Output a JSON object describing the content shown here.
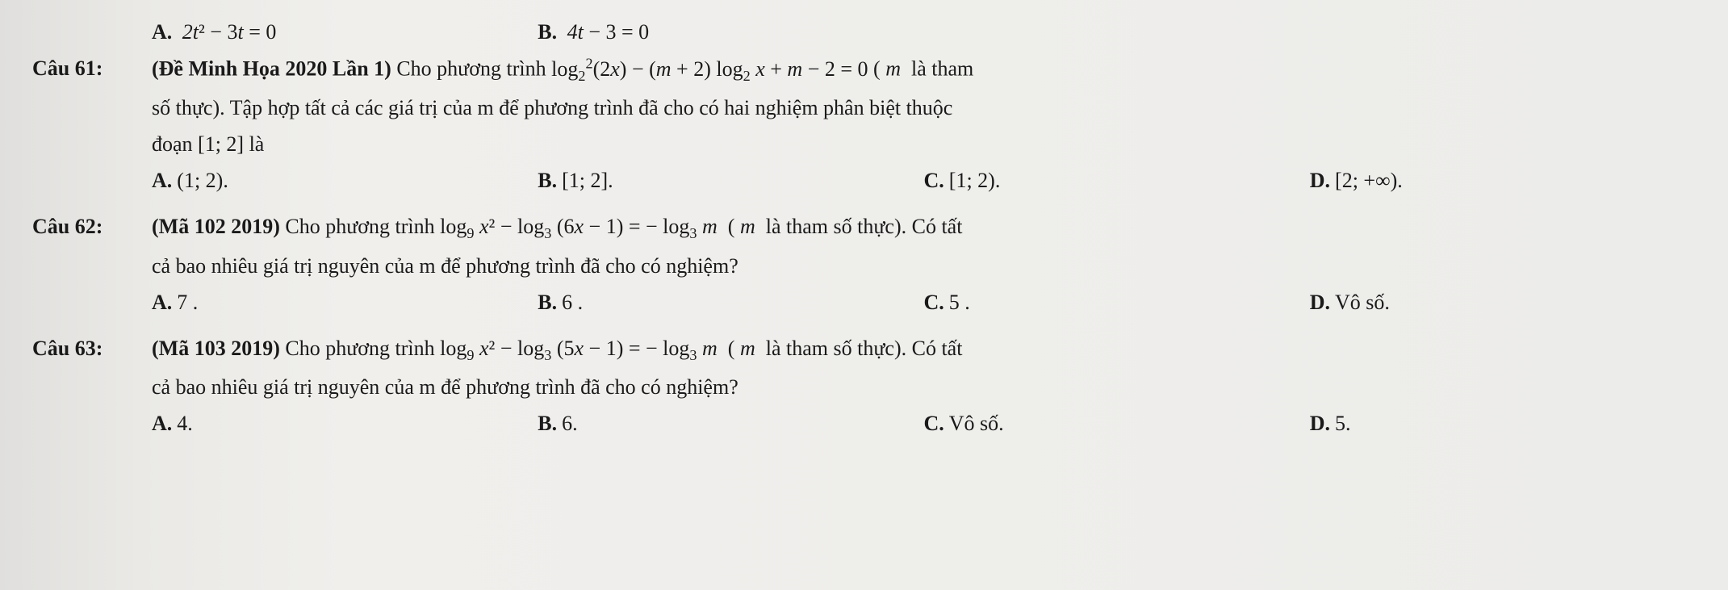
{
  "top": {
    "optA_label": "A.",
    "optA_text": "2t² − 3t = 0",
    "optB_label": "B.",
    "optB_text": "4t − 3 = 0"
  },
  "q61": {
    "label": "Câu 61:",
    "source": "(Đề Minh Họa 2020 Lần 1)",
    "line1_a": " Cho phương trình ",
    "eq": "log₂²(2x) − (m + 2) log₂ x + m − 2 = 0",
    "line1_b": " ( m là tham",
    "line2": "số thực). Tập hợp tất cả các giá trị của m để phương trình đã cho có hai nghiệm phân biệt thuộc",
    "line3": "đoạn [1; 2] là",
    "A_label": "A.",
    "A_text": "(1; 2).",
    "B_label": "B.",
    "B_text": "[1; 2].",
    "C_label": "C.",
    "C_text": "[1; 2).",
    "D_label": "D.",
    "D_text": "[2; +∞)."
  },
  "q62": {
    "label": "Câu 62:",
    "source": "(Mã 102 2019)",
    "line1_a": " Cho phương trình ",
    "eq": "log₉ x² − log₃ (6x − 1) = − log₃ m",
    "line1_b": " ( m là tham số thực). Có tất",
    "line2": "cả bao nhiêu giá trị nguyên của m để phương trình đã cho có nghiệm?",
    "A_label": "A.",
    "A_text": "7 .",
    "B_label": "B.",
    "B_text": "6 .",
    "C_label": "C.",
    "C_text": "5 .",
    "D_label": "D.",
    "D_text": "Vô số."
  },
  "q63": {
    "label": "Câu 63:",
    "source": "(Mã 103 2019)",
    "line1_a": " Cho phương trình ",
    "eq": "log₉ x² − log₃ (5x − 1) = − log₃ m",
    "line1_b": " ( m là tham số thực). Có tất",
    "line2": "cả bao nhiêu giá trị nguyên của m để phương trình đã cho có nghiệm?",
    "A_label": "A.",
    "A_text": "4.",
    "B_label": "B.",
    "B_text": "6.",
    "C_label": "C.",
    "C_text": "Vô số.",
    "D_label": "D.",
    "D_text": "5."
  },
  "style": {
    "fontsize_body": 26,
    "fontsize_sub": 18,
    "color_text": "#1a1a1a",
    "background": "#ececea",
    "font_family": "Times New Roman"
  }
}
